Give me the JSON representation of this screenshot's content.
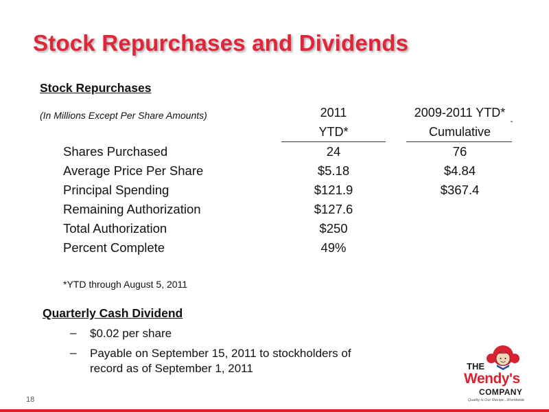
{
  "slide": {
    "title": "Stock Repurchases and Dividends",
    "page_number": "18"
  },
  "stock_repurchases": {
    "heading": "Stock Repurchases",
    "units_note": "(In Millions Except Per Share Amounts)",
    "columns": [
      {
        "line1": "2011",
        "line2": "YTD*"
      },
      {
        "line1": "2009-2011 YTD*",
        "line2": "Cumulative"
      }
    ],
    "rows": [
      {
        "label": "Shares Purchased",
        "col1": "24",
        "col2": "76"
      },
      {
        "label": "Average Price Per Share",
        "col1": "$5.18",
        "col2": "$4.84"
      },
      {
        "label": "Principal Spending",
        "col1": "$121.9",
        "col2": "$367.4"
      },
      {
        "label": "Remaining Authorization",
        "col1": "$127.6",
        "col2": ""
      },
      {
        "label": "Total Authorization",
        "col1": "$250",
        "col2": ""
      },
      {
        "label": "Percent Complete",
        "col1": "49%",
        "col2": ""
      }
    ],
    "footnote": "*YTD through August 5, 2011"
  },
  "quarterly_dividend": {
    "heading": "Quarterly Cash Dividend",
    "bullets": [
      "$0.02 per share",
      "Payable on September 15, 2011 to stockholders of record as of September 1, 2011"
    ],
    "bullet_marker": "–"
  },
  "logo": {
    "the": "THE",
    "wendys": "Wendy's",
    "company": "COMPANY",
    "tagline": "Quality is Our Recipe...Worldwide",
    "icon": "wendy-girl-icon"
  },
  "colors": {
    "title_red": "#e0263a",
    "brand_red": "#d9222f"
  }
}
